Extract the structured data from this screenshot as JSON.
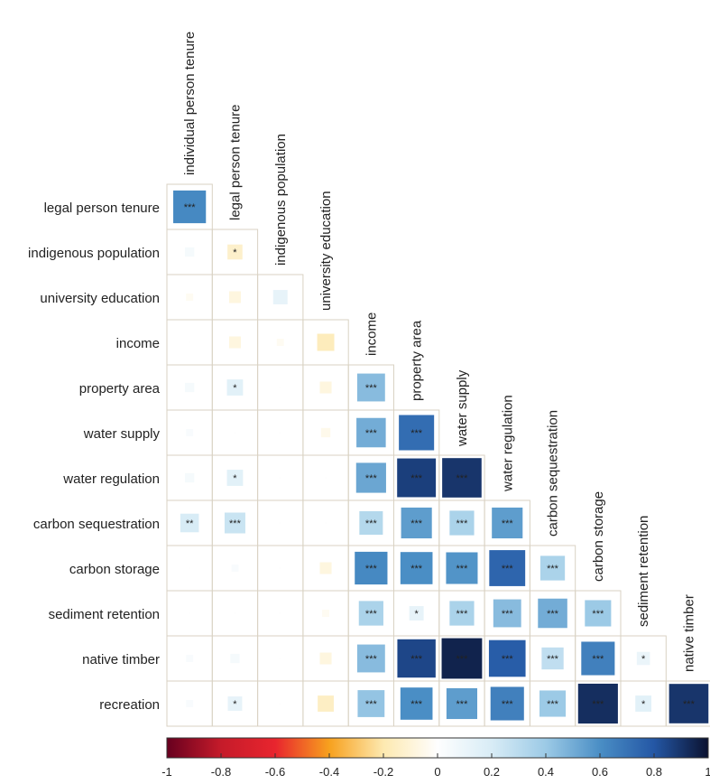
{
  "chart_data": {
    "type": "heatmap",
    "layout": "lower-triangle correlation matrix",
    "column_labels": [
      "individual person tenure",
      "legal person tenure",
      "indigenous population",
      "university education",
      "income",
      "property area",
      "water supply",
      "water regulation",
      "carbon sequestration",
      "carbon storage",
      "sediment retention",
      "native timber"
    ],
    "row_labels": [
      "legal person tenure",
      "indigenous population",
      "university education",
      "income",
      "property area",
      "water supply",
      "water regulation",
      "carbon sequestration",
      "carbon storage",
      "sediment retention",
      "native timber",
      "recreation"
    ],
    "cells": [
      [
        {
          "r": 0.62,
          "s": "***"
        }
      ],
      [
        {
          "r": 0.05,
          "s": ""
        },
        {
          "r": -0.13,
          "s": "*"
        }
      ],
      [
        {
          "r": -0.03,
          "s": ""
        },
        {
          "r": -0.08,
          "s": ""
        },
        {
          "r": 0.12,
          "s": ""
        }
      ],
      [
        {
          "r": 0.0,
          "s": ""
        },
        {
          "r": -0.08,
          "s": ""
        },
        {
          "r": -0.03,
          "s": ""
        },
        {
          "r": -0.17,
          "s": ""
        }
      ],
      [
        {
          "r": 0.05,
          "s": ""
        },
        {
          "r": 0.15,
          "s": "*"
        },
        {
          "r": 0.0,
          "s": ""
        },
        {
          "r": -0.08,
          "s": ""
        },
        {
          "r": 0.45,
          "s": "***"
        }
      ],
      [
        {
          "r": 0.03,
          "s": ""
        },
        {
          "r": 0.0,
          "s": ""
        },
        {
          "r": 0.0,
          "s": ""
        },
        {
          "r": -0.05,
          "s": ""
        },
        {
          "r": 0.5,
          "s": "***"
        },
        {
          "r": 0.72,
          "s": "***"
        }
      ],
      [
        {
          "r": 0.05,
          "s": ""
        },
        {
          "r": 0.15,
          "s": "*"
        },
        {
          "r": 0.0,
          "s": ""
        },
        {
          "r": 0.0,
          "s": ""
        },
        {
          "r": 0.52,
          "s": "***"
        },
        {
          "r": 0.87,
          "s": "***"
        },
        {
          "r": 0.9,
          "s": "***"
        }
      ],
      [
        {
          "r": 0.2,
          "s": "**"
        },
        {
          "r": 0.25,
          "s": "***"
        },
        {
          "r": 0.0,
          "s": ""
        },
        {
          "r": 0.0,
          "s": ""
        },
        {
          "r": 0.32,
          "s": "***"
        },
        {
          "r": 0.55,
          "s": "***"
        },
        {
          "r": 0.35,
          "s": "***"
        },
        {
          "r": 0.55,
          "s": "***"
        }
      ],
      [
        {
          "r": 0.0,
          "s": ""
        },
        {
          "r": 0.03,
          "s": ""
        },
        {
          "r": 0.0,
          "s": ""
        },
        {
          "r": -0.08,
          "s": ""
        },
        {
          "r": 0.62,
          "s": "***"
        },
        {
          "r": 0.6,
          "s": "***"
        },
        {
          "r": 0.58,
          "s": "***"
        },
        {
          "r": 0.75,
          "s": "***"
        },
        {
          "r": 0.35,
          "s": "***"
        }
      ],
      [
        {
          "r": 0.0,
          "s": ""
        },
        {
          "r": 0.0,
          "s": ""
        },
        {
          "r": 0.0,
          "s": ""
        },
        {
          "r": -0.03,
          "s": ""
        },
        {
          "r": 0.35,
          "s": "***"
        },
        {
          "r": 0.12,
          "s": "*"
        },
        {
          "r": 0.35,
          "s": "***"
        },
        {
          "r": 0.45,
          "s": "***"
        },
        {
          "r": 0.5,
          "s": "***"
        },
        {
          "r": 0.4,
          "s": "***"
        }
      ],
      [
        {
          "r": 0.03,
          "s": ""
        },
        {
          "r": 0.05,
          "s": ""
        },
        {
          "r": 0.0,
          "s": ""
        },
        {
          "r": -0.08,
          "s": ""
        },
        {
          "r": 0.45,
          "s": "***"
        },
        {
          "r": 0.85,
          "s": "***"
        },
        {
          "r": 0.95,
          "s": "***"
        },
        {
          "r": 0.78,
          "s": "***"
        },
        {
          "r": 0.28,
          "s": "***"
        },
        {
          "r": 0.65,
          "s": "***"
        },
        {
          "r": 0.1,
          "s": "*"
        }
      ],
      [
        {
          "r": 0.03,
          "s": ""
        },
        {
          "r": 0.12,
          "s": "*"
        },
        {
          "r": 0.0,
          "s": ""
        },
        {
          "r": -0.15,
          "s": ""
        },
        {
          "r": 0.42,
          "s": "***"
        },
        {
          "r": 0.6,
          "s": "***"
        },
        {
          "r": 0.55,
          "s": "***"
        },
        {
          "r": 0.65,
          "s": "***"
        },
        {
          "r": 0.4,
          "s": "***"
        },
        {
          "r": 0.92,
          "s": "***"
        },
        {
          "r": 0.15,
          "s": "*"
        },
        {
          "r": 0.9,
          "s": "***"
        }
      ]
    ],
    "colorbar": {
      "min": -1,
      "max": 1,
      "tick_labels": [
        "-1",
        "-0.8",
        "-0.6",
        "-0.4",
        "-0.2",
        "0",
        "0.2",
        "0.4",
        "0.6",
        "0.8",
        "1"
      ],
      "stops": [
        {
          "v": -1.0,
          "c": "#67001f"
        },
        {
          "v": -0.8,
          "c": "#c51b2a"
        },
        {
          "v": -0.6,
          "c": "#e8252e"
        },
        {
          "v": -0.4,
          "c": "#f7a11e"
        },
        {
          "v": -0.2,
          "c": "#fde9b0"
        },
        {
          "v": 0.0,
          "c": "#fefefe"
        },
        {
          "v": 0.2,
          "c": "#d8ecf6"
        },
        {
          "v": 0.4,
          "c": "#9ccae6"
        },
        {
          "v": 0.6,
          "c": "#4a8ec5"
        },
        {
          "v": 0.8,
          "c": "#2457a5"
        },
        {
          "v": 1.0,
          "c": "#0b1230"
        }
      ]
    },
    "grid_color": "#d9d2c3"
  }
}
